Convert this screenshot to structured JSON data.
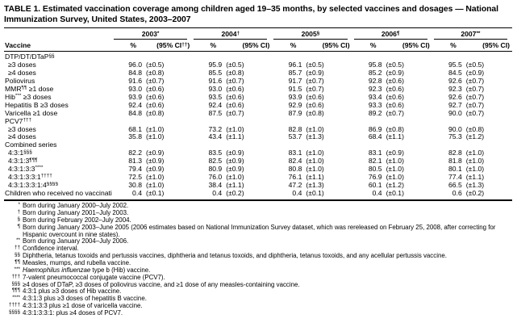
{
  "title": "TABLE 1. Estimated vaccination coverage among children aged 19–35 months, by selected vaccines and dosages — National Immunization Survey, United States, 2003–2007",
  "header": {
    "vaccine_label": "Vaccine",
    "pct_label": "%",
    "years": [
      {
        "year": "2003",
        "sup": "*",
        "ci_pre": "(95% CI",
        "ci_sup": "††",
        "ci_post": ")"
      },
      {
        "year": "2004",
        "sup": "†",
        "ci_pre": "(95% CI)",
        "ci_sup": "",
        "ci_post": ""
      },
      {
        "year": "2005",
        "sup": "§",
        "ci_pre": "(95% CI)",
        "ci_sup": "",
        "ci_post": ""
      },
      {
        "year": "2006",
        "sup": "¶",
        "ci_pre": "(95% CI)",
        "ci_sup": "",
        "ci_post": ""
      },
      {
        "year": "2007",
        "sup": "**",
        "ci_pre": "(95% CI)",
        "ci_sup": "",
        "ci_post": ""
      }
    ]
  },
  "rows": [
    {
      "pre": "DTP/DT/DTaP",
      "sup": "§§",
      "post": "",
      "indent": false,
      "section": true,
      "values": []
    },
    {
      "pre": "≥3 doses",
      "sup": "",
      "post": "",
      "indent": true,
      "section": false,
      "values": [
        {
          "pct": "96.0",
          "ci": "(±0.5)"
        },
        {
          "pct": "95.9",
          "ci": "(±0.5)"
        },
        {
          "pct": "96.1",
          "ci": "(±0.5)"
        },
        {
          "pct": "95.8",
          "ci": "(±0.5)"
        },
        {
          "pct": "95.5",
          "ci": "(±0.5)"
        }
      ]
    },
    {
      "pre": "≥4 doses",
      "sup": "",
      "post": "",
      "indent": true,
      "section": false,
      "values": [
        {
          "pct": "84.8",
          "ci": "(±0.8)"
        },
        {
          "pct": "85.5",
          "ci": "(±0.8)"
        },
        {
          "pct": "85.7",
          "ci": "(±0.9)"
        },
        {
          "pct": "85.2",
          "ci": "(±0.9)"
        },
        {
          "pct": "84.5",
          "ci": "(±0.9)"
        }
      ]
    },
    {
      "pre": "Poliovirus",
      "sup": "",
      "post": "",
      "indent": false,
      "section": false,
      "values": [
        {
          "pct": "91.6",
          "ci": "(±0.7)"
        },
        {
          "pct": "91.6",
          "ci": "(±0.7)"
        },
        {
          "pct": "91.7",
          "ci": "(±0.7)"
        },
        {
          "pct": "92.8",
          "ci": "(±0.6)"
        },
        {
          "pct": "92.6",
          "ci": "(±0.7)"
        }
      ]
    },
    {
      "pre": "MMR",
      "sup": "¶¶",
      "post": " ≥1 dose",
      "indent": false,
      "section": false,
      "values": [
        {
          "pct": "93.0",
          "ci": "(±0.6)"
        },
        {
          "pct": "93.0",
          "ci": "(±0.6)"
        },
        {
          "pct": "91.5",
          "ci": "(±0.7)"
        },
        {
          "pct": "92.3",
          "ci": "(±0.6)"
        },
        {
          "pct": "92.3",
          "ci": "(±0.7)"
        }
      ]
    },
    {
      "pre": "Hib",
      "sup": "***",
      "post": " ≥3 doses",
      "indent": false,
      "section": false,
      "values": [
        {
          "pct": "93.9",
          "ci": "(±0.6)"
        },
        {
          "pct": "93.5",
          "ci": "(±0.6)"
        },
        {
          "pct": "93.9",
          "ci": "(±0.6)"
        },
        {
          "pct": "93.4",
          "ci": "(±0.6)"
        },
        {
          "pct": "92.6",
          "ci": "(±0.7)"
        }
      ]
    },
    {
      "pre": "Hepatitis B ≥3 doses",
      "sup": "",
      "post": "",
      "indent": false,
      "section": false,
      "values": [
        {
          "pct": "92.4",
          "ci": "(±0.6)"
        },
        {
          "pct": "92.4",
          "ci": "(±0.6)"
        },
        {
          "pct": "92.9",
          "ci": "(±0.6)"
        },
        {
          "pct": "93.3",
          "ci": "(±0.6)"
        },
        {
          "pct": "92.7",
          "ci": "(±0.7)"
        }
      ]
    },
    {
      "pre": "Varicella ≥1 dose",
      "sup": "",
      "post": "",
      "indent": false,
      "section": false,
      "values": [
        {
          "pct": "84.8",
          "ci": "(±0.8)"
        },
        {
          "pct": "87.5",
          "ci": "(±0.7)"
        },
        {
          "pct": "87.9",
          "ci": "(±0.8)"
        },
        {
          "pct": "89.2",
          "ci": "(±0.7)"
        },
        {
          "pct": "90.0",
          "ci": "(±0.7)"
        }
      ]
    },
    {
      "pre": "PCV7",
      "sup": "†††",
      "post": "",
      "indent": false,
      "section": true,
      "values": []
    },
    {
      "pre": "≥3 doses",
      "sup": "",
      "post": "",
      "indent": true,
      "section": false,
      "values": [
        {
          "pct": "68.1",
          "ci": "(±1.0)"
        },
        {
          "pct": "73.2",
          "ci": "(±1.0)"
        },
        {
          "pct": "82.8",
          "ci": "(±1.0)"
        },
        {
          "pct": "86.9",
          "ci": "(±0.8)"
        },
        {
          "pct": "90.0",
          "ci": "(±0.8)"
        }
      ]
    },
    {
      "pre": "≥4 doses",
      "sup": "",
      "post": "",
      "indent": true,
      "section": false,
      "values": [
        {
          "pct": "35.8",
          "ci": "(±1.0)"
        },
        {
          "pct": "43.4",
          "ci": "(±1.1)"
        },
        {
          "pct": "53.7",
          "ci": "(±1.3)"
        },
        {
          "pct": "68.4",
          "ci": "(±1.1)"
        },
        {
          "pct": "75.3",
          "ci": "(±1.2)"
        }
      ]
    },
    {
      "pre": "Combined series",
      "sup": "",
      "post": "",
      "indent": false,
      "section": true,
      "values": []
    },
    {
      "pre": "4:3:1",
      "sup": "§§§",
      "post": "",
      "indent": true,
      "section": false,
      "values": [
        {
          "pct": "82.2",
          "ci": "(±0.9)"
        },
        {
          "pct": "83.5",
          "ci": "(±0.9)"
        },
        {
          "pct": "83.1",
          "ci": "(±1.0)"
        },
        {
          "pct": "83.1",
          "ci": "(±0.9)"
        },
        {
          "pct": "82.8",
          "ci": "(±1.0)"
        }
      ]
    },
    {
      "pre": "4:3:1:3",
      "sup": "¶¶¶",
      "post": "",
      "indent": true,
      "section": false,
      "values": [
        {
          "pct": "81.3",
          "ci": "(±0.9)"
        },
        {
          "pct": "82.5",
          "ci": "(±0.9)"
        },
        {
          "pct": "82.4",
          "ci": "(±1.0)"
        },
        {
          "pct": "82.1",
          "ci": "(±1.0)"
        },
        {
          "pct": "81.8",
          "ci": "(±1.0)"
        }
      ]
    },
    {
      "pre": "4:3:1:3:3",
      "sup": "****",
      "post": "",
      "indent": true,
      "section": false,
      "values": [
        {
          "pct": "79.4",
          "ci": "(±0.9)"
        },
        {
          "pct": "80.9",
          "ci": "(±0.9)"
        },
        {
          "pct": "80.8",
          "ci": "(±1.0)"
        },
        {
          "pct": "80.5",
          "ci": "(±1.0)"
        },
        {
          "pct": "80.1",
          "ci": "(±1.0)"
        }
      ]
    },
    {
      "pre": "4:3:1:3:3:1",
      "sup": "††††",
      "post": "",
      "indent": true,
      "section": false,
      "values": [
        {
          "pct": "72.5",
          "ci": "(±1.0)"
        },
        {
          "pct": "76.0",
          "ci": "(±1.0)"
        },
        {
          "pct": "76.1",
          "ci": "(±1.1)"
        },
        {
          "pct": "76.9",
          "ci": "(±1.0)"
        },
        {
          "pct": "77.4",
          "ci": "(±1.1)"
        }
      ]
    },
    {
      "pre": "4:3:1:3:3:1:4",
      "sup": "§§§§",
      "post": "",
      "indent": true,
      "section": false,
      "values": [
        {
          "pct": "30.8",
          "ci": "(±1.0)"
        },
        {
          "pct": "38.4",
          "ci": "(±1.1)"
        },
        {
          "pct": "47.2",
          "ci": "(±1.3)"
        },
        {
          "pct": "60.1",
          "ci": "(±1.2)"
        },
        {
          "pct": "66.5",
          "ci": "(±1.3)"
        }
      ]
    },
    {
      "pre": "Children who received no vaccinations",
      "sup": "",
      "post": "",
      "indent": false,
      "section": false,
      "values": [
        {
          "pct": "0.4",
          "ci": "(±0.1)"
        },
        {
          "pct": "0.4",
          "ci": "(±0.2)"
        },
        {
          "pct": "0.4",
          "ci": "(±0.1)"
        },
        {
          "pct": "0.4",
          "ci": "(±0.1)"
        },
        {
          "pct": "0.6",
          "ci": "(±0.2)"
        }
      ]
    }
  ],
  "footnotes": [
    {
      "marker": "*",
      "text": "Born during January 2000–July 2002."
    },
    {
      "marker": "†",
      "text": "Born during January 2001–July 2003."
    },
    {
      "marker": "§",
      "text": "Born during February 2002–July 2004."
    },
    {
      "marker": "¶",
      "text": "Born during January 2003–June 2005 (2006 estimates based on National Immunization Survey dataset, which was rereleased on February 25, 2008, after correcting for Hispanic overcount in nine states)."
    },
    {
      "marker": "**",
      "text": "Born during January 2004–July 2006."
    },
    {
      "marker": "††",
      "text": "Confidence interval."
    },
    {
      "marker": "§§",
      "text": "Diphtheria, tetanus toxoids and pertussis vaccines, diphtheria and tetanus toxoids, and diphtheria, tetanus toxoids, and any acellular pertussis vaccine."
    },
    {
      "marker": "¶¶",
      "text": "Measles, mumps, and rubella vaccine."
    },
    {
      "marker": "***",
      "italic": "Haemophilus influenzae",
      "text": " type b (Hib) vaccine."
    },
    {
      "marker": "†††",
      "text": "7-valent pneumococcal conjugate vaccine (PCV7)."
    },
    {
      "marker": "§§§",
      "text": "≥4 doses of DTaP, ≥3 doses of poliovirus vaccine, and ≥1 dose of any measles-containing vaccine."
    },
    {
      "marker": "¶¶¶",
      "text": "4:3:1 plus ≥3 doses of Hib vaccine."
    },
    {
      "marker": "****",
      "text": "4:3:1:3 plus ≥3 doses of hepatitis B vaccine."
    },
    {
      "marker": "††††",
      "text": "4:3:1:3:3 plus ≥1 dose of varicella vaccine."
    },
    {
      "marker": "§§§§",
      "text": "4:3:1:3:3:1: plus ≥4 doses of PCV7."
    }
  ]
}
